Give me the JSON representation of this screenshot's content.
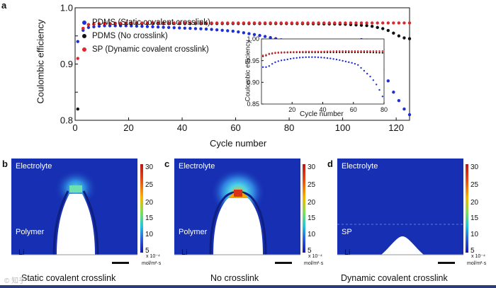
{
  "panel_a": {
    "letter": "a",
    "legend": [
      {
        "label": "PDMS (Static covalent crosslink)",
        "color": "#1f2fd6"
      },
      {
        "label": "PDMS (No crosslink)",
        "color": "#111111"
      },
      {
        "label": "SP (Dynamic covalent crosslink)",
        "color": "#e0262a"
      }
    ]
  },
  "chart_data": [
    {
      "type": "scatter",
      "title": "",
      "xlabel": "Cycle number",
      "ylabel": "Coulombic efficiency",
      "xlim": [
        0,
        125
      ],
      "ylim": [
        0.8,
        1.0
      ],
      "xticks": [
        0,
        20,
        40,
        60,
        80,
        100,
        120
      ],
      "yticks": [
        0.8,
        0.85,
        0.9,
        0.95,
        1.0
      ],
      "ytick_labels": [
        "0.8",
        "",
        "0.9",
        "",
        "1.0"
      ],
      "series": [
        {
          "name": "PDMS (Static covalent crosslink)",
          "color": "#1f2fd6",
          "x": [
            1,
            2,
            3,
            5,
            10,
            20,
            30,
            40,
            50,
            60,
            70,
            75,
            80,
            85,
            90,
            95,
            100,
            105,
            108,
            110,
            112,
            114,
            116,
            118,
            120,
            122,
            124
          ],
          "y": [
            0.94,
            0.95,
            0.96,
            0.965,
            0.968,
            0.968,
            0.966,
            0.964,
            0.962,
            0.958,
            0.95,
            0.945,
            0.94,
            0.935,
            0.93,
            0.925,
            0.935,
            0.94,
            0.945,
            0.94,
            0.92,
            0.9,
            0.88,
            0.86,
            0.84,
            0.83,
            0.81
          ]
        },
        {
          "name": "PDMS (No crosslink)",
          "color": "#111111",
          "x": [
            1,
            2,
            5,
            10,
            20,
            40,
            60,
            80,
            100,
            110,
            115,
            118,
            120,
            122,
            124
          ],
          "y": [
            0.82,
            0.96,
            0.97,
            0.972,
            0.972,
            0.972,
            0.972,
            0.972,
            0.971,
            0.968,
            0.963,
            0.958,
            0.952,
            0.948,
            0.945
          ]
        },
        {
          "name": "SP (Dynamic covalent crosslink)",
          "color": "#e0262a",
          "x": [
            1,
            2,
            5,
            10,
            20,
            40,
            60,
            80,
            100,
            110,
            115,
            120,
            124
          ],
          "y": [
            0.91,
            0.96,
            0.97,
            0.972,
            0.973,
            0.973,
            0.973,
            0.973,
            0.973,
            0.973,
            0.973,
            0.973,
            0.973
          ]
        }
      ]
    },
    {
      "type": "scatter",
      "title": "inset",
      "xlabel": "Cycle number",
      "ylabel": "Coulombic efficiency",
      "xlim": [
        0,
        80
      ],
      "ylim": [
        0.85,
        1.0
      ],
      "xticks": [
        20,
        40,
        60,
        80
      ],
      "yticks": [
        0.85,
        0.9,
        0.95,
        1.0
      ],
      "ytick_labels": [
        "0.85",
        "0.90",
        "0.95",
        "1.00"
      ],
      "series": [
        {
          "name": "PDMS (Static covalent crosslink)",
          "color": "#1f2fd6",
          "x": [
            4,
            8,
            12,
            16,
            20,
            25,
            30,
            35,
            40,
            45,
            50,
            55,
            60,
            63,
            66,
            69,
            72,
            74,
            76,
            78,
            80
          ],
          "y": [
            0.935,
            0.945,
            0.95,
            0.952,
            0.955,
            0.957,
            0.958,
            0.958,
            0.957,
            0.955,
            0.952,
            0.948,
            0.944,
            0.94,
            0.93,
            0.92,
            0.91,
            0.9,
            0.89,
            0.875,
            0.86
          ]
        },
        {
          "name": "PDMS (No crosslink)",
          "color": "#111111",
          "x": [
            2,
            5,
            10,
            20,
            30,
            40,
            50,
            60,
            70,
            80
          ],
          "y": [
            0.96,
            0.965,
            0.968,
            0.969,
            0.969,
            0.969,
            0.969,
            0.969,
            0.969,
            0.968
          ]
        },
        {
          "name": "SP (Dynamic covalent crosslink)",
          "color": "#e0262a",
          "x": [
            2,
            5,
            10,
            20,
            30,
            40,
            50,
            60,
            70,
            80
          ],
          "y": [
            0.962,
            0.966,
            0.969,
            0.97,
            0.971,
            0.971,
            0.972,
            0.972,
            0.972,
            0.972
          ]
        }
      ]
    }
  ],
  "sim_panels": [
    {
      "letter": "b",
      "electrolyte": "Electrolyte",
      "material": "Polymer",
      "electrode": "Li",
      "caption": "Static covalent crosslink"
    },
    {
      "letter": "c",
      "electrolyte": "Electrolyte",
      "material": "Polymer",
      "electrode": "Li",
      "caption": "No crosslink"
    },
    {
      "letter": "d",
      "electrolyte": "Electrolyte",
      "material": "SP",
      "electrode": "Li",
      "caption": "Dynamic covalent crosslink"
    }
  ],
  "colorbar": {
    "ticks": [
      "30",
      "25",
      "20",
      "15",
      "10",
      "5"
    ],
    "unit_line1": "x 10⁻⁴",
    "unit_line2": "mol/m²·s"
  },
  "watermark": "© 知乎"
}
